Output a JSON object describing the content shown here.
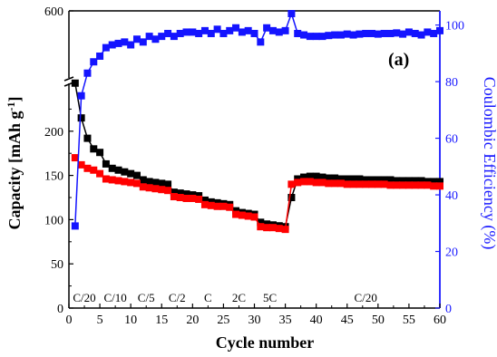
{
  "chart_data": {
    "type": "scatter",
    "panel_label": "(a)",
    "xlabel": "Cycle number",
    "ylabel_left": "Capacity [mAh g",
    "ylabel_left_sup": "-1",
    "ylabel_left_end": "]",
    "ylabel_right": "Coulombic Efficiency (%)",
    "x_range": [
      0,
      60
    ],
    "y_left_range": [
      0,
      600
    ],
    "y_left_break": [
      250,
      580
    ],
    "y_right_range": [
      0,
      105
    ],
    "x_ticks": [
      "0",
      "5",
      "10",
      "15",
      "20",
      "25",
      "30",
      "35",
      "40",
      "45",
      "50",
      "55",
      "60"
    ],
    "y_left_ticks": [
      "0",
      "50",
      "100",
      "150",
      "200",
      "600"
    ],
    "y_right_ticks": [
      "0",
      "20",
      "40",
      "60",
      "80",
      "100"
    ],
    "rate_labels": [
      {
        "text": "C/20",
        "x": 2.5
      },
      {
        "text": "C/10",
        "x": 7.5
      },
      {
        "text": "C/5",
        "x": 12.5
      },
      {
        "text": "C/2",
        "x": 17.5
      },
      {
        "text": "C",
        "x": 22.5
      },
      {
        "text": "2C",
        "x": 27.5
      },
      {
        "text": "5C",
        "x": 32.5
      },
      {
        "text": "C/20",
        "x": 48
      }
    ],
    "series": [
      {
        "name": "",
        "color": "#000000",
        "axis": "left",
        "marker": "square",
        "x": [
          1,
          2,
          3,
          4,
          5,
          6,
          7,
          8,
          9,
          10,
          11,
          12,
          13,
          14,
          15,
          16,
          17,
          18,
          19,
          20,
          21,
          22,
          23,
          24,
          25,
          26,
          27,
          28,
          29,
          30,
          31,
          32,
          33,
          34,
          35,
          36,
          37,
          38,
          39,
          40,
          41,
          42,
          43,
          44,
          45,
          46,
          47,
          48,
          49,
          50,
          51,
          52,
          53,
          54,
          55,
          56,
          57,
          58,
          59,
          60
        ],
        "y": [
          350,
          215,
          192,
          180,
          176,
          163,
          158,
          156,
          154,
          152,
          150,
          145,
          143,
          142,
          141,
          140,
          131,
          130,
          129,
          128,
          127,
          122,
          120,
          119,
          118,
          117,
          110,
          108,
          107,
          106,
          97,
          95,
          94,
          93,
          92,
          125,
          146,
          148,
          149,
          149,
          148,
          147,
          147,
          146,
          146,
          146,
          146,
          145,
          145,
          145,
          145,
          145,
          144,
          144,
          144,
          144,
          144,
          143,
          143,
          143
        ]
      },
      {
        "name": "",
        "color": "#ff0000",
        "axis": "left",
        "marker": "square",
        "x": [
          1,
          2,
          3,
          4,
          5,
          6,
          7,
          8,
          9,
          10,
          11,
          12,
          13,
          14,
          15,
          16,
          17,
          18,
          19,
          20,
          21,
          22,
          23,
          24,
          25,
          26,
          27,
          28,
          29,
          30,
          31,
          32,
          33,
          34,
          35,
          36,
          37,
          38,
          39,
          40,
          41,
          42,
          43,
          44,
          45,
          46,
          47,
          48,
          49,
          50,
          51,
          52,
          53,
          54,
          55,
          56,
          57,
          58,
          59,
          60
        ],
        "y": [
          170,
          162,
          158,
          156,
          152,
          146,
          145,
          144,
          143,
          142,
          141,
          137,
          136,
          135,
          134,
          133,
          126,
          125,
          124,
          124,
          123,
          117,
          116,
          115,
          115,
          114,
          106,
          105,
          104,
          103,
          92,
          91,
          91,
          90,
          89,
          140,
          142,
          143,
          143,
          142,
          142,
          141,
          141,
          141,
          140,
          140,
          140,
          140,
          140,
          140,
          140,
          139,
          139,
          139,
          139,
          139,
          139,
          139,
          138,
          138
        ]
      },
      {
        "name": "",
        "color": "#1414ff",
        "axis": "right",
        "marker": "square",
        "x": [
          1,
          2,
          3,
          4,
          5,
          6,
          7,
          8,
          9,
          10,
          11,
          12,
          13,
          14,
          15,
          16,
          17,
          18,
          19,
          20,
          21,
          22,
          23,
          24,
          25,
          26,
          27,
          28,
          29,
          30,
          31,
          32,
          33,
          34,
          35,
          36,
          37,
          38,
          39,
          40,
          41,
          42,
          43,
          44,
          45,
          46,
          47,
          48,
          49,
          50,
          51,
          52,
          53,
          54,
          55,
          56,
          57,
          58,
          59,
          60
        ],
        "y": [
          29,
          75,
          83,
          87,
          89,
          92,
          93,
          93.5,
          94,
          93,
          95,
          94,
          96,
          95,
          96,
          97,
          96,
          97,
          97.5,
          97.5,
          97,
          98,
          97,
          98.5,
          97,
          98,
          99,
          97.5,
          98,
          97,
          94,
          99,
          98,
          97.5,
          98,
          106,
          97,
          96.5,
          96,
          96,
          96,
          96.3,
          96.5,
          96.5,
          96.8,
          96.5,
          96.8,
          97,
          97,
          96.8,
          97,
          97,
          97.2,
          96.8,
          97.5,
          97,
          96.5,
          97.5,
          97,
          98
        ]
      }
    ]
  }
}
